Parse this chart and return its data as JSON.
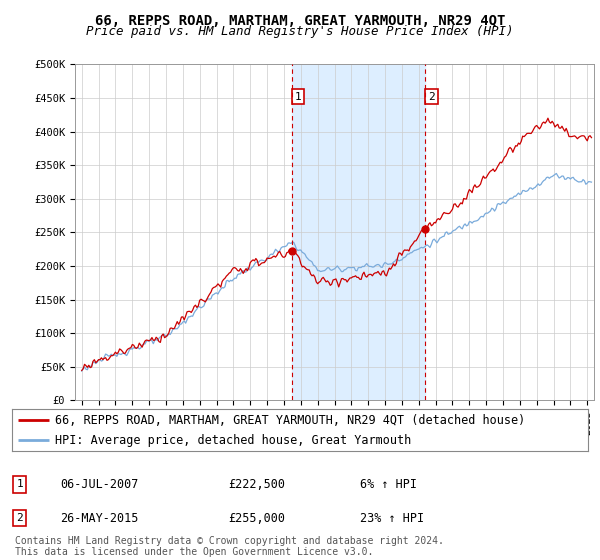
{
  "title": "66, REPPS ROAD, MARTHAM, GREAT YARMOUTH, NR29 4QT",
  "subtitle": "Price paid vs. HM Land Registry's House Price Index (HPI)",
  "ylabel_ticks": [
    "£0",
    "£50K",
    "£100K",
    "£150K",
    "£200K",
    "£250K",
    "£300K",
    "£350K",
    "£400K",
    "£450K",
    "£500K"
  ],
  "ytick_vals": [
    0,
    50000,
    100000,
    150000,
    200000,
    250000,
    300000,
    350000,
    400000,
    450000,
    500000
  ],
  "ylim": [
    0,
    500000
  ],
  "xlim_start": 1994.6,
  "xlim_end": 2025.4,
  "sale1_x": 2007.5,
  "sale1_y": 222500,
  "sale2_x": 2015.4,
  "sale2_y": 255000,
  "sale1_label": "06-JUL-2007",
  "sale2_label": "26-MAY-2015",
  "sale1_price": "£222,500",
  "sale2_price": "£255,000",
  "sale1_hpi": "6% ↑ HPI",
  "sale2_hpi": "23% ↑ HPI",
  "legend_line1": "66, REPPS ROAD, MARTHAM, GREAT YARMOUTH, NR29 4QT (detached house)",
  "legend_line2": "HPI: Average price, detached house, Great Yarmouth",
  "footnote": "Contains HM Land Registry data © Crown copyright and database right 2024.\nThis data is licensed under the Open Government Licence v3.0.",
  "line1_color": "#cc0000",
  "line2_color": "#7aabdb",
  "shade_color": "#ddeeff",
  "vline_color": "#cc0000",
  "background_color": "#ffffff",
  "grid_color": "#cccccc",
  "title_fontsize": 10,
  "subtitle_fontsize": 9,
  "tick_fontsize": 7.5,
  "legend_fontsize": 8.5,
  "footnote_fontsize": 7
}
